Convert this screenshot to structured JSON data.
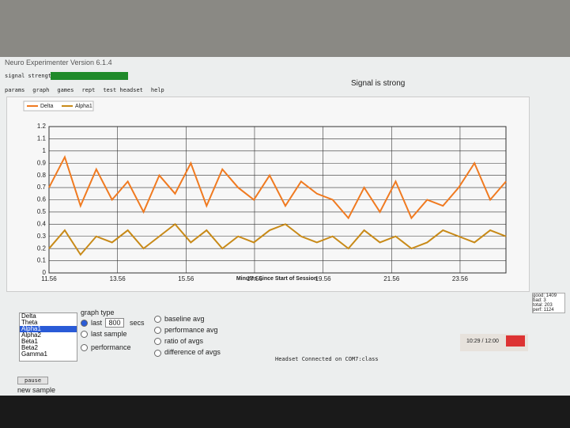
{
  "window": {
    "title": "Neuro Experimenter Version 6.1.4",
    "signal_label": "signal strength",
    "status": "Signal is strong"
  },
  "tabs": [
    "params",
    "graph",
    "games",
    "rept",
    "test headset",
    "help"
  ],
  "chart_data": {
    "type": "line",
    "x_label": "Minutes Since Start of Session",
    "legend_position": "top-left",
    "grid": true,
    "x": [
      11.56,
      12.02,
      12.48,
      12.94,
      13.4,
      13.86,
      14.32,
      14.78,
      15.24,
      15.7,
      16.16,
      16.62,
      17.08,
      17.54,
      18.0,
      18.46,
      18.92,
      19.38,
      19.84,
      20.3,
      20.76,
      21.22,
      21.68,
      22.14,
      22.6,
      23.06,
      23.52,
      23.98,
      24.44,
      24.9
    ],
    "series": [
      {
        "name": "Delta",
        "color": "#f07a20",
        "values": [
          0.7,
          0.95,
          0.55,
          0.85,
          0.6,
          0.75,
          0.5,
          0.8,
          0.65,
          0.9,
          0.55,
          0.85,
          0.7,
          0.6,
          0.8,
          0.55,
          0.75,
          0.65,
          0.6,
          0.45,
          0.7,
          0.5,
          0.75,
          0.45,
          0.6,
          0.55,
          0.7,
          0.9,
          0.6,
          0.75
        ]
      },
      {
        "name": "Alpha1",
        "color": "#c88a18",
        "values": [
          0.2,
          0.35,
          0.15,
          0.3,
          0.25,
          0.35,
          0.2,
          0.3,
          0.4,
          0.25,
          0.35,
          0.2,
          0.3,
          0.25,
          0.35,
          0.4,
          0.3,
          0.25,
          0.3,
          0.2,
          0.35,
          0.25,
          0.3,
          0.2,
          0.25,
          0.35,
          0.3,
          0.25,
          0.35,
          0.3
        ]
      }
    ],
    "xlim": [
      11.56,
      24.9
    ],
    "xticks": [
      11.56,
      13.56,
      15.56,
      17.56,
      19.56,
      21.56,
      23.56
    ],
    "ylim": [
      0,
      1.2
    ],
    "yticks": [
      0,
      0.1,
      0.2,
      0.3,
      0.4,
      0.5,
      0.6,
      0.7,
      0.8,
      0.9,
      1,
      1.1,
      1.2
    ]
  },
  "controls": {
    "bands": [
      "Delta",
      "Theta",
      "Alpha1",
      "Alpha2",
      "Beta1",
      "Beta2",
      "Gamma1"
    ],
    "graph_type_label": "graph type",
    "last": "last",
    "last_secs": 800,
    "secs": "secs",
    "options": [
      "last sample",
      "performance"
    ],
    "averages": [
      "baseline avg",
      "performance avg",
      "ratio of avgs",
      "difference of avgs"
    ]
  },
  "footer": {
    "connection": "Headset Connected on COM7:class",
    "timer": "10:29 / 12:00",
    "stats": [
      "good: 1409",
      "bad: 3",
      "total: 203",
      "perf: 1124"
    ],
    "pause": "pause",
    "new_sample": "new sample"
  }
}
